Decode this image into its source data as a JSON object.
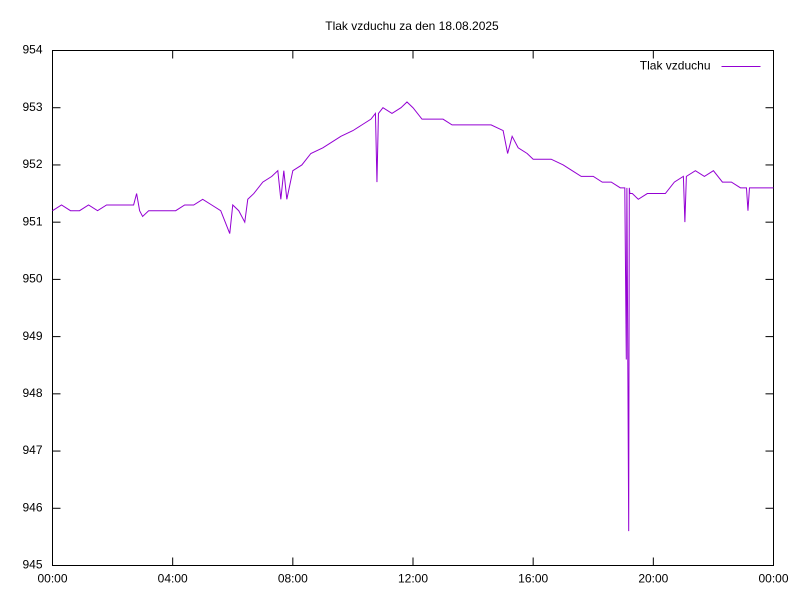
{
  "chart_data": {
    "type": "line",
    "title": "Tlak vzduchu za den 18.08.2025",
    "x": [
      0,
      0.3,
      0.6,
      0.9,
      1.2,
      1.5,
      1.8,
      2.1,
      2.4,
      2.7,
      2.8,
      2.9,
      3.0,
      3.2,
      3.5,
      3.8,
      4.1,
      4.4,
      4.7,
      5.0,
      5.3,
      5.6,
      5.9,
      6.0,
      6.2,
      6.4,
      6.5,
      6.7,
      7.0,
      7.3,
      7.5,
      7.6,
      7.7,
      7.8,
      8.0,
      8.3,
      8.6,
      9.0,
      9.3,
      9.6,
      10.0,
      10.3,
      10.6,
      10.75,
      10.8,
      10.85,
      11.0,
      11.3,
      11.6,
      11.8,
      12.0,
      12.3,
      12.6,
      13.0,
      13.3,
      13.6,
      14.0,
      14.3,
      14.6,
      15.0,
      15.15,
      15.3,
      15.5,
      15.8,
      16.0,
      16.3,
      16.6,
      17.0,
      17.3,
      17.6,
      18.0,
      18.3,
      18.6,
      18.9,
      19.05,
      19.1,
      19.12,
      19.18,
      19.2,
      19.22,
      19.3,
      19.5,
      19.8,
      20.1,
      20.4,
      20.7,
      21.0,
      21.05,
      21.1,
      21.4,
      21.7,
      22.0,
      22.3,
      22.6,
      22.9,
      23.1,
      23.15,
      23.2,
      23.5,
      24.0
    ],
    "series": [
      {
        "name": "Tlak vzduchu",
        "color": "#9400d3",
        "values": [
          951.2,
          951.3,
          951.2,
          951.2,
          951.3,
          951.2,
          951.3,
          951.3,
          951.3,
          951.3,
          951.5,
          951.2,
          951.1,
          951.2,
          951.2,
          951.2,
          951.2,
          951.3,
          951.3,
          951.4,
          951.3,
          951.2,
          950.8,
          951.3,
          951.2,
          951.0,
          951.4,
          951.5,
          951.7,
          951.8,
          951.9,
          951.4,
          951.9,
          951.4,
          951.9,
          952.0,
          952.2,
          952.3,
          952.4,
          952.5,
          952.6,
          952.7,
          952.8,
          952.9,
          951.7,
          952.9,
          953.0,
          952.9,
          953.0,
          953.1,
          953.0,
          952.8,
          952.8,
          952.8,
          952.7,
          952.7,
          952.7,
          952.7,
          952.7,
          952.6,
          952.2,
          952.5,
          952.3,
          952.2,
          952.1,
          952.1,
          952.1,
          952.0,
          951.9,
          951.8,
          951.8,
          951.7,
          951.7,
          951.6,
          951.6,
          948.6,
          951.6,
          945.6,
          951.6,
          951.5,
          951.5,
          951.4,
          951.5,
          951.5,
          951.5,
          951.7,
          951.8,
          951.0,
          951.8,
          951.9,
          951.8,
          951.9,
          951.7,
          951.7,
          951.6,
          951.6,
          951.2,
          951.6,
          951.6,
          951.6
        ]
      }
    ],
    "xlim": [
      0,
      24
    ],
    "xticks": [
      {
        "value": 0,
        "label": "00:00"
      },
      {
        "value": 4,
        "label": "04:00"
      },
      {
        "value": 8,
        "label": "08:00"
      },
      {
        "value": 12,
        "label": "12:00"
      },
      {
        "value": 16,
        "label": "16:00"
      },
      {
        "value": 20,
        "label": "20:00"
      },
      {
        "value": 24,
        "label": "00:00"
      }
    ],
    "ylim": [
      945,
      954
    ],
    "yticks": [
      945,
      946,
      947,
      948,
      949,
      950,
      951,
      952,
      953,
      954
    ],
    "legend": "top-right",
    "grid": false
  }
}
